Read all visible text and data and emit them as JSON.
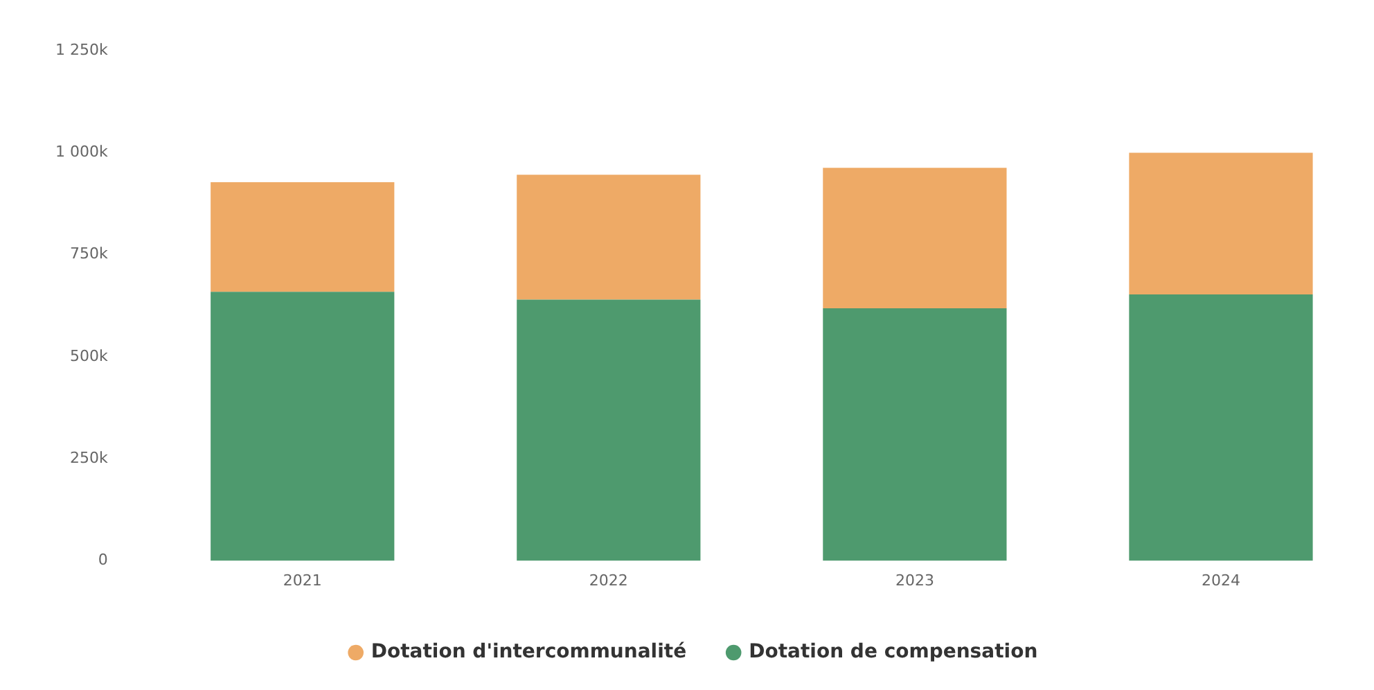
{
  "chart_data": {
    "type": "bar",
    "stacked": true,
    "categories": [
      "2021",
      "2022",
      "2023",
      "2024"
    ],
    "series": [
      {
        "name": "Dotation de compensation",
        "color": "#4e9a6e",
        "values": [
          659000,
          640000,
          619000,
          653000
        ]
      },
      {
        "name": "Dotation d'intercommunalité",
        "color": "#eeaa66",
        "values": [
          269000,
          306000,
          344000,
          347000
        ]
      }
    ],
    "ylim": [
      0,
      1250000
    ],
    "yticks": [
      0,
      {
        "value": 250000,
        "label": "250k"
      },
      {
        "value": 500000,
        "label": "500k"
      },
      {
        "value": 750000,
        "label": "750k"
      },
      {
        "value": 1000000,
        "label": "1 000k"
      },
      {
        "value": 1250000,
        "label": "1 250k"
      }
    ],
    "grid": false,
    "legend": "bottom"
  }
}
